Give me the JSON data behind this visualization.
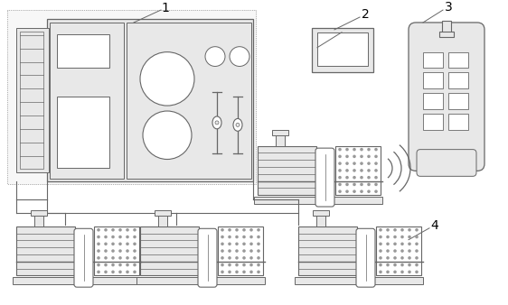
{
  "bg_color": "#ffffff",
  "lc": "#666666",
  "fc_light": "#e8e8e8",
  "fc_white": "#ffffff",
  "dot_color": "#999999",
  "label_1": "1",
  "label_2": "2",
  "label_3": "3",
  "label_4": "4",
  "font_size": 10
}
